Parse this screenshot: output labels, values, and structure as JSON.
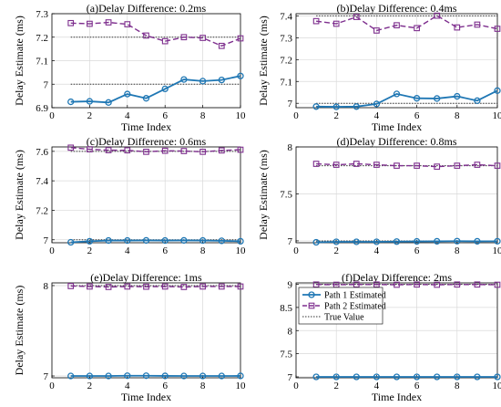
{
  "colors": {
    "path1": "#1f77b4",
    "path2": "#7e2f8e",
    "true_value": "#333333",
    "grid": "#d9d9d9"
  },
  "legend": {
    "panel_index": 5,
    "placement": "top-left",
    "entries": [
      "Path 1 Estimated",
      "Path 2 Estimated",
      "True Value"
    ]
  },
  "chart_data": [
    {
      "type": "line",
      "title": "(a)Delay Difference: 0.2ms",
      "xlabel": "Time Index",
      "ylabel": "Delay Estimate (ms)",
      "xlim": [
        0,
        10
      ],
      "ylim": [
        6.9,
        7.3
      ],
      "xticks": [
        0,
        2,
        4,
        6,
        8,
        10
      ],
      "yticks": [
        6.9,
        7,
        7.1,
        7.2,
        7.3
      ],
      "ytick_labels": [
        "6.9",
        "7",
        "7.1",
        "7.2",
        "7.3"
      ],
      "grid": true,
      "x": [
        1,
        2,
        3,
        4,
        5,
        6,
        7,
        8,
        9,
        10
      ],
      "series": [
        {
          "name": "Path 1 Estimated",
          "values": [
            6.925,
            6.927,
            6.922,
            6.958,
            6.94,
            6.98,
            7.02,
            7.013,
            7.018,
            7.035
          ]
        },
        {
          "name": "Path 2 Estimated",
          "values": [
            7.26,
            7.257,
            7.263,
            7.255,
            7.207,
            7.183,
            7.2,
            7.197,
            7.163,
            7.195
          ]
        }
      ],
      "true_values": [
        7.0,
        7.2
      ]
    },
    {
      "type": "line",
      "title": "(b)Delay Difference: 0.4ms",
      "xlabel": "Time Index",
      "ylabel": "Delay Estimate (ms)",
      "xlim": [
        0,
        10
      ],
      "ylim": [
        6.98,
        7.41
      ],
      "xticks": [
        0,
        2,
        4,
        6,
        8,
        10
      ],
      "yticks": [
        7,
        7.1,
        7.2,
        7.3,
        7.4
      ],
      "ytick_labels": [
        "7",
        "7.1",
        "7.2",
        "7.3",
        "7.4"
      ],
      "grid": true,
      "x": [
        1,
        2,
        3,
        4,
        5,
        6,
        7,
        8,
        9,
        10
      ],
      "series": [
        {
          "name": "Path 1 Estimated",
          "values": [
            6.985,
            6.984,
            6.985,
            6.997,
            7.043,
            7.023,
            7.022,
            7.032,
            7.012,
            7.058
          ]
        },
        {
          "name": "Path 2 Estimated",
          "values": [
            7.376,
            7.364,
            7.395,
            7.333,
            7.357,
            7.344,
            7.401,
            7.347,
            7.36,
            7.341
          ]
        }
      ],
      "true_values": [
        7.0,
        7.4
      ]
    },
    {
      "type": "line",
      "title": "(c)Delay Difference: 0.6ms",
      "xlabel": "",
      "ylabel": "Delay Estimate (ms)",
      "xlim": [
        0,
        10
      ],
      "ylim": [
        6.98,
        7.63
      ],
      "xticks": [
        0,
        2,
        4,
        6,
        8,
        10
      ],
      "yticks": [
        7,
        7.2,
        7.4,
        7.6
      ],
      "ytick_labels": [
        "7",
        "7.2",
        "7.4",
        "7.6"
      ],
      "grid": true,
      "x": [
        1,
        2,
        3,
        4,
        5,
        6,
        7,
        8,
        9,
        10
      ],
      "series": [
        {
          "name": "Path 1 Estimated",
          "values": [
            6.983,
            6.99,
            6.995,
            6.995,
            6.996,
            6.995,
            6.996,
            6.995,
            6.993,
            6.99
          ]
        },
        {
          "name": "Path 2 Estimated",
          "values": [
            7.625,
            7.614,
            7.608,
            7.607,
            7.597,
            7.604,
            7.602,
            7.597,
            7.606,
            7.611
          ]
        }
      ],
      "true_values": [
        7.0,
        7.6
      ]
    },
    {
      "type": "line",
      "title": "(d)Delay Difference: 0.8ms",
      "xlabel": "",
      "ylabel": "Delay Estimate (ms)",
      "xlim": [
        0,
        10
      ],
      "ylim": [
        6.98,
        8.0
      ],
      "xticks": [
        0,
        2,
        4,
        6,
        8,
        10
      ],
      "yticks": [
        7,
        7.5,
        8
      ],
      "ytick_labels": [
        "7",
        "7.5",
        "8"
      ],
      "grid": true,
      "x": [
        1,
        2,
        3,
        4,
        5,
        6,
        7,
        8,
        9,
        10
      ],
      "series": [
        {
          "name": "Path 1 Estimated",
          "values": [
            6.985,
            6.99,
            6.99,
            6.99,
            6.992,
            6.994,
            6.995,
            6.997,
            6.995,
            6.996
          ]
        },
        {
          "name": "Path 2 Estimated",
          "values": [
            7.82,
            7.81,
            7.82,
            7.81,
            7.8,
            7.8,
            7.79,
            7.8,
            7.81,
            7.8
          ]
        }
      ],
      "true_values": [
        7.0,
        7.8
      ]
    },
    {
      "type": "line",
      "title": "(e)Delay Difference: 1ms",
      "xlabel": "Time Index",
      "ylabel": "Delay Estimate (ms)",
      "xlim": [
        0,
        10
      ],
      "ylim": [
        6.98,
        8.03
      ],
      "xticks": [
        0,
        2,
        4,
        6,
        8,
        10
      ],
      "yticks": [
        7,
        8
      ],
      "ytick_labels": [
        "7",
        "8"
      ],
      "grid": true,
      "x": [
        1,
        2,
        3,
        4,
        5,
        6,
        7,
        8,
        9,
        10
      ],
      "series": [
        {
          "name": "Path 1 Estimated",
          "values": [
            7.0,
            7.0,
            7.0,
            7.003,
            7.003,
            7.001,
            7.0,
            7.0,
            7.0,
            7.001
          ]
        },
        {
          "name": "Path 2 Estimated",
          "values": [
            7.995,
            7.99,
            7.985,
            7.99,
            7.988,
            7.99,
            7.985,
            7.99,
            7.99,
            7.99
          ]
        }
      ],
      "true_values": [
        7.0,
        8.0
      ]
    },
    {
      "type": "line",
      "title": "(f)Delay Difference: 2ms",
      "xlabel": "Time Index",
      "ylabel": "",
      "xlim": [
        0,
        10
      ],
      "ylim": [
        6.98,
        9.03
      ],
      "xticks": [
        0,
        2,
        4,
        6,
        8,
        10
      ],
      "yticks": [
        7,
        7.5,
        8,
        8.5,
        9
      ],
      "ytick_labels": [
        "7",
        "7.5",
        "8",
        "8.5",
        "9"
      ],
      "grid": true,
      "x": [
        1,
        2,
        3,
        4,
        5,
        6,
        7,
        8,
        9,
        10
      ],
      "series": [
        {
          "name": "Path 1 Estimated",
          "values": [
            7.0,
            7.0,
            7.0,
            7.0,
            7.0,
            7.0,
            7.0,
            7.0,
            7.0,
            7.0
          ]
        },
        {
          "name": "Path 2 Estimated",
          "values": [
            8.995,
            8.99,
            8.995,
            8.995,
            8.99,
            8.995,
            8.99,
            8.995,
            8.995,
            8.99
          ]
        }
      ],
      "true_values": [
        7.0,
        9.0
      ]
    }
  ]
}
